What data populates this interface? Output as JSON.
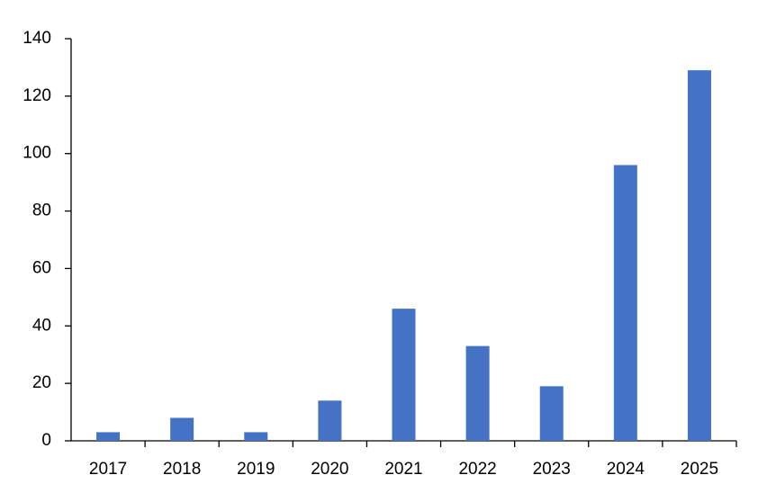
{
  "chart_data": {
    "type": "bar",
    "categories": [
      "2017",
      "2018",
      "2019",
      "2020",
      "2021",
      "2022",
      "2023",
      "2024",
      "2025"
    ],
    "values": [
      3,
      8,
      3,
      14,
      46,
      33,
      19,
      96,
      129
    ],
    "color": "#4472c4",
    "ylim": [
      0,
      140
    ],
    "yticks": [
      0,
      20,
      40,
      60,
      80,
      100,
      120,
      140
    ],
    "grid": false
  }
}
